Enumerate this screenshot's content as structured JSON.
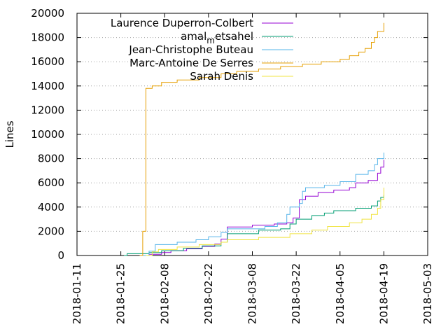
{
  "chart_data": {
    "type": "line",
    "title": "",
    "xlabel": "",
    "ylabel": "Lines",
    "x_type": "date",
    "xlim": [
      "2018-01-11",
      "2018-05-03"
    ],
    "ylim": [
      0,
      20000
    ],
    "x_ticks": [
      "2018-01-11",
      "2018-01-25",
      "2018-02-08",
      "2018-02-22",
      "2018-03-08",
      "2018-03-22",
      "2018-04-05",
      "2018-04-19",
      "2018-05-03"
    ],
    "y_ticks": [
      0,
      2000,
      4000,
      6000,
      8000,
      10000,
      12000,
      14000,
      16000,
      18000,
      20000
    ],
    "grid": "horizontal dotted",
    "legend_position": "top-center",
    "series": [
      {
        "name": "Laurence Duperron-Colbert",
        "color": "#9400d3",
        "step": true,
        "points": [
          [
            "2018-01-31",
            0
          ],
          [
            "2018-02-03",
            100
          ],
          [
            "2018-02-07",
            250
          ],
          [
            "2018-02-10",
            400
          ],
          [
            "2018-02-15",
            550
          ],
          [
            "2018-02-20",
            750
          ],
          [
            "2018-02-24",
            950
          ],
          [
            "2018-02-26",
            1350
          ],
          [
            "2018-02-28",
            2350
          ],
          [
            "2018-03-08",
            2500
          ],
          [
            "2018-03-15",
            2600
          ],
          [
            "2018-03-19",
            2700
          ],
          [
            "2018-03-21",
            3100
          ],
          [
            "2018-03-23",
            4600
          ],
          [
            "2018-03-25",
            4900
          ],
          [
            "2018-03-29",
            5200
          ],
          [
            "2018-04-03",
            5400
          ],
          [
            "2018-04-08",
            5600
          ],
          [
            "2018-04-10",
            6000
          ],
          [
            "2018-04-14",
            6200
          ],
          [
            "2018-04-17",
            6800
          ],
          [
            "2018-04-18",
            7300
          ],
          [
            "2018-04-19",
            7900
          ]
        ]
      },
      {
        "name": "amal_metsahel",
        "color": "#009e73",
        "step": true,
        "points": [
          [
            "2018-01-26",
            0
          ],
          [
            "2018-01-27",
            150
          ],
          [
            "2018-02-03",
            250
          ],
          [
            "2018-02-07",
            400
          ],
          [
            "2018-02-14",
            600
          ],
          [
            "2018-02-20",
            800
          ],
          [
            "2018-02-26",
            1100
          ],
          [
            "2018-02-28",
            1800
          ],
          [
            "2018-03-10",
            2100
          ],
          [
            "2018-03-17",
            2200
          ],
          [
            "2018-03-20",
            2600
          ],
          [
            "2018-03-22",
            3000
          ],
          [
            "2018-03-27",
            3300
          ],
          [
            "2018-03-31",
            3500
          ],
          [
            "2018-04-03",
            3700
          ],
          [
            "2018-04-10",
            3900
          ],
          [
            "2018-04-15",
            4100
          ],
          [
            "2018-04-17",
            4500
          ],
          [
            "2018-04-18",
            4800
          ],
          [
            "2018-04-19",
            5000
          ]
        ]
      },
      {
        "name": "Jean-Christophe Buteau",
        "color": "#56b4e9",
        "step": true,
        "points": [
          [
            "2018-02-01",
            0
          ],
          [
            "2018-02-03",
            350
          ],
          [
            "2018-02-05",
            900
          ],
          [
            "2018-02-12",
            1100
          ],
          [
            "2018-02-18",
            1300
          ],
          [
            "2018-02-22",
            1550
          ],
          [
            "2018-02-26",
            1900
          ],
          [
            "2018-02-28",
            2200
          ],
          [
            "2018-03-12",
            2400
          ],
          [
            "2018-03-16",
            2700
          ],
          [
            "2018-03-19",
            3400
          ],
          [
            "2018-03-20",
            4000
          ],
          [
            "2018-03-23",
            4300
          ],
          [
            "2018-03-24",
            5300
          ],
          [
            "2018-03-25",
            5600
          ],
          [
            "2018-03-31",
            5800
          ],
          [
            "2018-04-05",
            6100
          ],
          [
            "2018-04-10",
            6700
          ],
          [
            "2018-04-14",
            7000
          ],
          [
            "2018-04-16",
            7500
          ],
          [
            "2018-04-17",
            8000
          ],
          [
            "2018-04-19",
            8500
          ]
        ]
      },
      {
        "name": "Marc-Antoine De Serres",
        "color": "#e69f00",
        "step": true,
        "points": [
          [
            "2018-01-31",
            0
          ],
          [
            "2018-02-01",
            2000
          ],
          [
            "2018-02-02",
            13800
          ],
          [
            "2018-02-04",
            14000
          ],
          [
            "2018-02-07",
            14300
          ],
          [
            "2018-02-12",
            14500
          ],
          [
            "2018-02-19",
            14700
          ],
          [
            "2018-02-26",
            15000
          ],
          [
            "2018-03-03",
            15200
          ],
          [
            "2018-03-10",
            15400
          ],
          [
            "2018-03-17",
            15600
          ],
          [
            "2018-03-24",
            15800
          ],
          [
            "2018-03-30",
            16000
          ],
          [
            "2018-04-05",
            16200
          ],
          [
            "2018-04-08",
            16500
          ],
          [
            "2018-04-11",
            16800
          ],
          [
            "2018-04-13",
            17100
          ],
          [
            "2018-04-15",
            17600
          ],
          [
            "2018-04-16",
            18000
          ],
          [
            "2018-04-17",
            18500
          ],
          [
            "2018-04-19",
            19200
          ]
        ]
      },
      {
        "name": "Sarah Denis",
        "color": "#f0e442",
        "step": true,
        "points": [
          [
            "2018-02-02",
            0
          ],
          [
            "2018-02-04",
            300
          ],
          [
            "2018-02-06",
            500
          ],
          [
            "2018-02-12",
            700
          ],
          [
            "2018-02-19",
            900
          ],
          [
            "2018-02-26",
            1100
          ],
          [
            "2018-02-28",
            1300
          ],
          [
            "2018-03-10",
            1500
          ],
          [
            "2018-03-20",
            1800
          ],
          [
            "2018-03-27",
            2100
          ],
          [
            "2018-04-01",
            2400
          ],
          [
            "2018-04-08",
            2700
          ],
          [
            "2018-04-12",
            3000
          ],
          [
            "2018-04-15",
            3400
          ],
          [
            "2018-04-17",
            3900
          ],
          [
            "2018-04-18",
            4600
          ],
          [
            "2018-04-19",
            5600
          ]
        ]
      }
    ]
  }
}
